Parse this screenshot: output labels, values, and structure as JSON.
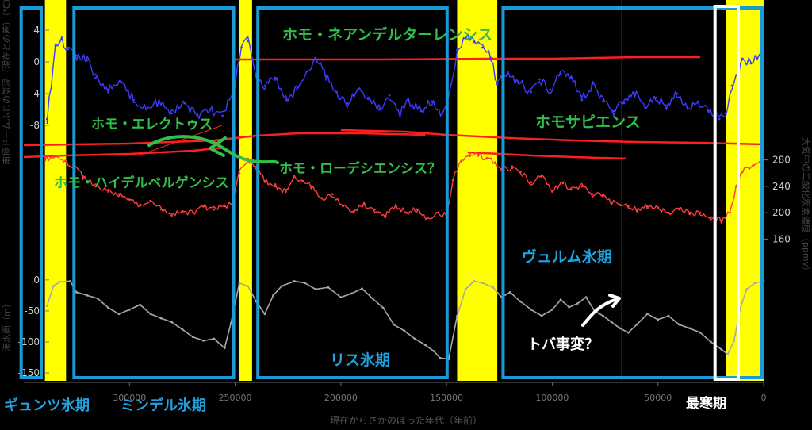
{
  "chart_data": {
    "type": "line",
    "xlabel": "現在からさかのぼった年代（年前）",
    "xlim": [
      350000,
      0
    ],
    "x_ticks": [
      {
        "value": 300000,
        "label": "300000"
      },
      {
        "value": 250000,
        "label": "250000"
      },
      {
        "value": 200000,
        "label": "200000"
      },
      {
        "value": 150000,
        "label": "150000"
      },
      {
        "value": 100000,
        "label": "100000"
      },
      {
        "value": 50000,
        "label": "50000"
      },
      {
        "value": 0,
        "label": "0"
      }
    ],
    "temperature": {
      "ylabel": "南極ドームふじの気温（現在との差）（℃）",
      "ylim": [
        -10,
        6
      ],
      "ticks": [
        "4",
        "0",
        "-4",
        "-8"
      ],
      "color": "#3b3bff",
      "points": [
        [
          339000,
          -7.2
        ],
        [
          335000,
          2.0
        ],
        [
          332000,
          2.8
        ],
        [
          329000,
          1.6
        ],
        [
          325000,
          0.8
        ],
        [
          320000,
          0.2
        ],
        [
          316000,
          -2.0
        ],
        [
          310000,
          -3.5
        ],
        [
          304000,
          -2.5
        ],
        [
          298000,
          -4.8
        ],
        [
          292000,
          -6.0
        ],
        [
          286000,
          -5.0
        ],
        [
          280000,
          -6.5
        ],
        [
          274000,
          -5.2
        ],
        [
          268000,
          -6.7
        ],
        [
          262000,
          -6.0
        ],
        [
          256000,
          -6.8
        ],
        [
          251000,
          -4.0
        ],
        [
          247000,
          1.8
        ],
        [
          244000,
          2.6
        ],
        [
          240000,
          -1.5
        ],
        [
          236000,
          -3.0
        ],
        [
          231000,
          -2.0
        ],
        [
          226000,
          -4.8
        ],
        [
          221000,
          -3.5
        ],
        [
          216000,
          -1.2
        ],
        [
          212000,
          0.5
        ],
        [
          207000,
          -1.8
        ],
        [
          202000,
          -3.8
        ],
        [
          197000,
          -5.2
        ],
        [
          192000,
          -3.5
        ],
        [
          187000,
          -4.5
        ],
        [
          182000,
          -6.0
        ],
        [
          177000,
          -4.2
        ],
        [
          172000,
          -6.5
        ],
        [
          168000,
          -5.0
        ],
        [
          162000,
          -6.2
        ],
        [
          157000,
          -5.0
        ],
        [
          152000,
          -6.5
        ],
        [
          148000,
          -3.0
        ],
        [
          145000,
          1.5
        ],
        [
          141000,
          3.0
        ],
        [
          137000,
          2.5
        ],
        [
          133000,
          1.8
        ],
        [
          129000,
          0.5
        ],
        [
          126000,
          -2.8
        ],
        [
          121000,
          -1.5
        ],
        [
          116000,
          -2.5
        ],
        [
          110000,
          -3.8
        ],
        [
          106000,
          -2.2
        ],
        [
          101000,
          -3.5
        ],
        [
          96000,
          -1.5
        ],
        [
          91000,
          -2.0
        ],
        [
          86000,
          -4.8
        ],
        [
          81000,
          -2.8
        ],
        [
          76000,
          -5.0
        ],
        [
          71000,
          -6.2
        ],
        [
          66000,
          -5.2
        ],
        [
          61000,
          -4.0
        ],
        [
          56000,
          -5.8
        ],
        [
          51000,
          -4.5
        ],
        [
          46000,
          -5.5
        ],
        [
          41000,
          -4.0
        ],
        [
          36000,
          -5.8
        ],
        [
          31000,
          -5.0
        ],
        [
          26000,
          -6.2
        ],
        [
          21000,
          -7.2
        ],
        [
          18000,
          -6.5
        ],
        [
          15000,
          -3.0
        ],
        [
          12000,
          -1.5
        ],
        [
          10000,
          0.4
        ],
        [
          6000,
          -0.2
        ],
        [
          3000,
          0.5
        ],
        [
          0,
          0.2
        ]
      ]
    },
    "co2": {
      "ylabel": "大気中の二酸化炭素濃度（ppmv）",
      "ylim": [
        140,
        300
      ],
      "ticks": [
        "280",
        "240",
        "200",
        "160"
      ],
      "color": "#ff3c3c",
      "points": [
        [
          340000,
          282
        ],
        [
          334000,
          285
        ],
        [
          330000,
          278
        ],
        [
          326000,
          270
        ],
        [
          322000,
          255
        ],
        [
          316000,
          240
        ],
        [
          310000,
          232
        ],
        [
          305000,
          228
        ],
        [
          300000,
          220
        ],
        [
          295000,
          212
        ],
        [
          290000,
          218
        ],
        [
          285000,
          205
        ],
        [
          280000,
          196
        ],
        [
          275000,
          202
        ],
        [
          270000,
          200
        ],
        [
          265000,
          210
        ],
        [
          260000,
          205
        ],
        [
          255000,
          210
        ],
        [
          251000,
          215
        ],
        [
          248000,
          260
        ],
        [
          244000,
          282
        ],
        [
          240000,
          270
        ],
        [
          236000,
          248
        ],
        [
          231000,
          240
        ],
        [
          226000,
          232
        ],
        [
          222000,
          255
        ],
        [
          218000,
          248
        ],
        [
          214000,
          240
        ],
        [
          209000,
          222
        ],
        [
          204000,
          228
        ],
        [
          199000,
          210
        ],
        [
          194000,
          202
        ],
        [
          189000,
          212
        ],
        [
          184000,
          205
        ],
        [
          179000,
          195
        ],
        [
          174000,
          210
        ],
        [
          169000,
          200
        ],
        [
          164000,
          205
        ],
        [
          159000,
          192
        ],
        [
          154000,
          200
        ],
        [
          150000,
          196
        ],
        [
          147000,
          250
        ],
        [
          143000,
          278
        ],
        [
          139000,
          286
        ],
        [
          135000,
          288
        ],
        [
          131000,
          282
        ],
        [
          127000,
          275
        ],
        [
          124000,
          266
        ],
        [
          119000,
          268
        ],
        [
          115000,
          262
        ],
        [
          110000,
          246
        ],
        [
          105000,
          255
        ],
        [
          100000,
          232
        ],
        [
          95000,
          245
        ],
        [
          91000,
          235
        ],
        [
          86000,
          240
        ],
        [
          81000,
          228
        ],
        [
          76000,
          225
        ],
        [
          72000,
          215
        ],
        [
          68000,
          212
        ],
        [
          64000,
          210
        ],
        [
          60000,
          205
        ],
        [
          55000,
          210
        ],
        [
          50000,
          208
        ],
        [
          45000,
          200
        ],
        [
          40000,
          206
        ],
        [
          35000,
          198
        ],
        [
          30000,
          200
        ],
        [
          25000,
          193
        ],
        [
          20000,
          188
        ],
        [
          16000,
          200
        ],
        [
          13000,
          240
        ],
        [
          10000,
          262
        ],
        [
          5000,
          272
        ],
        [
          0,
          280
        ]
      ]
    },
    "sea_level": {
      "ylabel": "海水面（m）",
      "ylim": [
        -150,
        10
      ],
      "ticks": [
        "0",
        "-50",
        "-100",
        "-150"
      ],
      "color": "#a8a8a8",
      "points": [
        [
          339000,
          -42
        ],
        [
          336000,
          -10
        ],
        [
          333000,
          -3
        ],
        [
          328000,
          -2
        ],
        [
          325000,
          -20
        ],
        [
          320000,
          -25
        ],
        [
          315000,
          -30
        ],
        [
          310000,
          -45
        ],
        [
          305000,
          -55
        ],
        [
          300000,
          -48
        ],
        [
          295000,
          -40
        ],
        [
          290000,
          -55
        ],
        [
          285000,
          -62
        ],
        [
          280000,
          -68
        ],
        [
          275000,
          -80
        ],
        [
          270000,
          -92
        ],
        [
          265000,
          -98
        ],
        [
          260000,
          -95
        ],
        [
          255000,
          -110
        ],
        [
          252000,
          -70
        ],
        [
          248000,
          -5
        ],
        [
          244000,
          -10
        ],
        [
          240000,
          -35
        ],
        [
          236000,
          -55
        ],
        [
          232000,
          -25
        ],
        [
          228000,
          -10
        ],
        [
          222000,
          -2
        ],
        [
          217000,
          -5
        ],
        [
          212000,
          -15
        ],
        [
          206000,
          -12
        ],
        [
          200000,
          -28
        ],
        [
          195000,
          -22
        ],
        [
          190000,
          -14
        ],
        [
          185000,
          -30
        ],
        [
          180000,
          -45
        ],
        [
          175000,
          -72
        ],
        [
          170000,
          -82
        ],
        [
          165000,
          -95
        ],
        [
          160000,
          -105
        ],
        [
          156000,
          -115
        ],
        [
          153000,
          -126
        ],
        [
          149000,
          -128
        ],
        [
          145000,
          -58
        ],
        [
          141000,
          -15
        ],
        [
          137000,
          -2
        ],
        [
          133000,
          -5
        ],
        [
          128000,
          -12
        ],
        [
          124000,
          -28
        ],
        [
          120000,
          -20
        ],
        [
          115000,
          -35
        ],
        [
          110000,
          -48
        ],
        [
          105000,
          -58
        ],
        [
          100000,
          -48
        ],
        [
          96000,
          -32
        ],
        [
          92000,
          -44
        ],
        [
          88000,
          -38
        ],
        [
          84000,
          -28
        ],
        [
          80000,
          -50
        ],
        [
          76000,
          -58
        ],
        [
          72000,
          -68
        ],
        [
          68000,
          -78
        ],
        [
          64000,
          -85
        ],
        [
          60000,
          -72
        ],
        [
          55000,
          -55
        ],
        [
          50000,
          -64
        ],
        [
          45000,
          -58
        ],
        [
          40000,
          -72
        ],
        [
          35000,
          -78
        ],
        [
          30000,
          -85
        ],
        [
          25000,
          -100
        ],
        [
          20000,
          -112
        ],
        [
          17000,
          -120
        ],
        [
          14000,
          -98
        ],
        [
          11000,
          -45
        ],
        [
          8000,
          -15
        ],
        [
          4000,
          -5
        ],
        [
          0,
          -2
        ]
      ]
    },
    "homo_lines": [
      {
        "name": "neanderthalensis",
        "color": "#ff1e1e",
        "points": [
          [
            250000,
            0.3
          ],
          [
            220000,
            0.3
          ],
          [
            180000,
            0.3
          ],
          [
            130000,
            0.4
          ],
          [
            100000,
            0.4
          ],
          [
            60000,
            0.6
          ],
          [
            30000,
            0.6
          ]
        ]
      },
      {
        "name": "sapiens",
        "color": "#ff1e1e",
        "points": [
          [
            200000,
            -8.6
          ],
          [
            170000,
            -8.8
          ],
          [
            150000,
            -9.2
          ],
          [
            120000,
            -9.6
          ],
          [
            90000,
            -9.9
          ],
          [
            60000,
            -10.1
          ],
          [
            30000,
            -10.2
          ],
          [
            0,
            -10.4
          ]
        ]
      },
      {
        "name": "erectus",
        "color": "#ff1e1e",
        "points": [
          [
            350000,
            -10.5
          ],
          [
            300000,
            -10.3
          ],
          [
            260000,
            -9.9
          ],
          [
            240000,
            -9.3
          ],
          [
            220000,
            -9.0
          ],
          [
            190000,
            -9.0
          ],
          [
            160000,
            -9.2
          ]
        ]
      },
      {
        "name": "heidelbergensis",
        "color": "#ff1e1e",
        "points": [
          [
            350000,
            -12.0
          ],
          [
            330000,
            -11.8
          ],
          [
            300000,
            -11.6
          ],
          [
            270000,
            -11.2
          ],
          [
            255000,
            -10.8
          ]
        ]
      },
      {
        "name": "late",
        "color": "#ff1e1e",
        "points": [
          [
            140000,
            -11.4
          ],
          [
            110000,
            -11.8
          ],
          [
            90000,
            -12.0
          ],
          [
            65000,
            -12.2
          ]
        ]
      }
    ],
    "interglacials": [
      [
        340000,
        330000
      ],
      [
        248000,
        242000
      ],
      [
        145000,
        126000
      ],
      [
        18000,
        0
      ]
    ],
    "glacial_boxes": [
      [
        352000,
        341000
      ],
      [
        327000,
        250000
      ],
      [
        240000,
        149000
      ],
      [
        124000,
        0
      ]
    ],
    "coldest_box": [
      23000,
      12000
    ],
    "marker_line_x": 67000
  },
  "annotations": {
    "neanderthal": "ホモ・ネアンデルターレンシス",
    "erectus": "ホモ・エレクトゥス",
    "sapiens": "ホモサピエンス",
    "rhodesiensis": "ホモ・ローデシエンシス？",
    "heidelbergensis": "ホモ・ハイデルベルゲンシス",
    "wurm": "ヴュルム氷期",
    "riss": "リス氷期",
    "gunz": "ギュンツ氷期",
    "mindel": "ミンデル氷期",
    "coldest": "最寒期",
    "toba": "トバ事変？"
  },
  "colors": {
    "interglacial": "#ffff00",
    "glacial_box": "#1a9ad6",
    "label_green": "#2fbf4a",
    "label_blue": "#1fa3e0",
    "label_white": "#ffffff"
  }
}
